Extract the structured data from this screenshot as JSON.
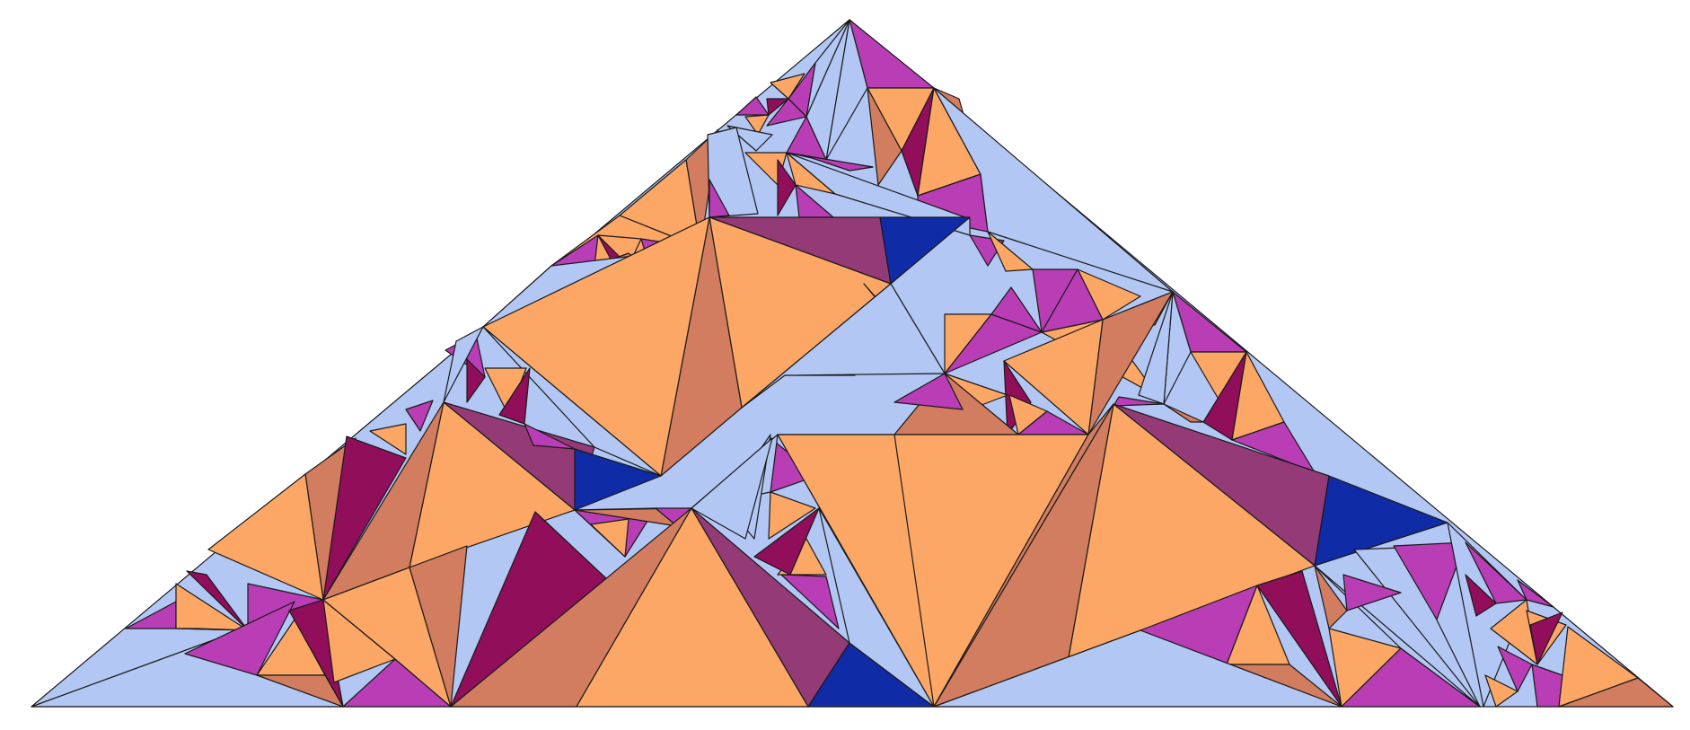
{
  "figure": {
    "description_shown_text": "",
    "palette": {
      "light_orange": "#fca766",
      "terracotta": "#d27d5f",
      "magenta": "#b93db5",
      "dark_magenta": "#900e5a",
      "plum": "#933a77",
      "lavender": "#b3c7f4",
      "navy": "#0f2ba6"
    },
    "tile_classes": [
      "light_orange",
      "terracotta",
      "magenta",
      "dark_magenta",
      "plum",
      "lavender",
      "navy"
    ]
  }
}
